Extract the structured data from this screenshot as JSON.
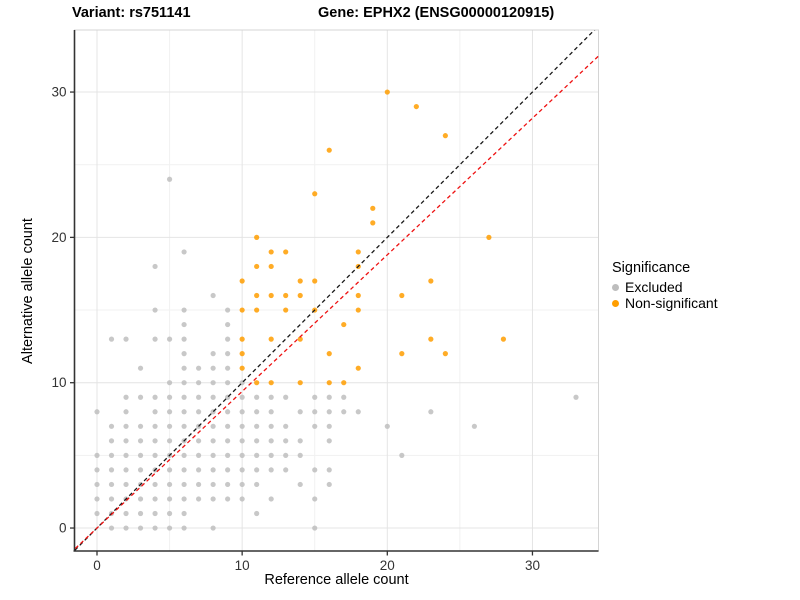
{
  "title": {
    "left": "Variant: rs751141",
    "right": "Gene: EPHX2 (ENSG00000120915)"
  },
  "axes": {
    "x": {
      "label": "Reference allele count"
    },
    "y": {
      "label": "Alternative allele count"
    }
  },
  "legend": {
    "title": "Significance",
    "items": [
      {
        "label": "Excluded",
        "color": "#BDBDBD"
      },
      {
        "label": "Non-significant",
        "color": "#FF9E00"
      }
    ]
  },
  "chart_data": {
    "type": "scatter",
    "title": "Variant: rs751141   Gene: EPHX2 (ENSG00000120915)",
    "xlabel": "Reference allele count",
    "ylabel": "Alternative allele count",
    "xlim": [
      -1.55,
      34.55
    ],
    "ylim": [
      -1.58,
      34.27
    ],
    "x_ticks": [
      0,
      10,
      20,
      30
    ],
    "y_ticks": [
      0,
      10,
      20,
      30
    ],
    "x_minor": [
      5,
      15,
      25
    ],
    "y_minor": [
      5,
      15,
      25
    ],
    "grid": true,
    "legend_position": "right",
    "point_radius": 2.6,
    "colors": {
      "panel_border": "#D4D4D4",
      "axis_line": "#333333",
      "major_grid": "#E4E4E4",
      "minor_grid": "#F1F1F1",
      "tick_text": "#333333"
    },
    "series": [
      {
        "name": "Excluded",
        "color": "#BEBEBE",
        "points": [
          [
            1,
            0
          ],
          [
            2,
            0
          ],
          [
            3,
            0
          ],
          [
            4,
            0
          ],
          [
            5,
            0
          ],
          [
            6,
            0
          ],
          [
            8,
            0
          ],
          [
            15,
            0
          ],
          [
            0,
            1
          ],
          [
            1,
            1
          ],
          [
            2,
            1
          ],
          [
            3,
            1
          ],
          [
            4,
            1
          ],
          [
            5,
            1
          ],
          [
            6,
            1
          ],
          [
            11,
            1
          ],
          [
            0,
            2
          ],
          [
            1,
            2
          ],
          [
            2,
            2
          ],
          [
            3,
            2
          ],
          [
            4,
            2
          ],
          [
            5,
            2
          ],
          [
            6,
            2
          ],
          [
            7,
            2
          ],
          [
            8,
            2
          ],
          [
            9,
            2
          ],
          [
            10,
            2
          ],
          [
            12,
            2
          ],
          [
            15,
            2
          ],
          [
            0,
            3
          ],
          [
            1,
            3
          ],
          [
            2,
            3
          ],
          [
            3,
            3
          ],
          [
            4,
            3
          ],
          [
            5,
            3
          ],
          [
            6,
            3
          ],
          [
            7,
            3
          ],
          [
            8,
            3
          ],
          [
            9,
            3
          ],
          [
            10,
            3
          ],
          [
            11,
            3
          ],
          [
            14,
            3
          ],
          [
            16,
            3
          ],
          [
            0,
            4
          ],
          [
            1,
            4
          ],
          [
            2,
            4
          ],
          [
            3,
            4
          ],
          [
            4,
            4
          ],
          [
            5,
            4
          ],
          [
            6,
            4
          ],
          [
            7,
            4
          ],
          [
            8,
            4
          ],
          [
            9,
            4
          ],
          [
            10,
            4
          ],
          [
            11,
            4
          ],
          [
            12,
            4
          ],
          [
            13,
            4
          ],
          [
            15,
            4
          ],
          [
            16,
            4
          ],
          [
            0,
            5
          ],
          [
            1,
            5
          ],
          [
            2,
            5
          ],
          [
            3,
            5
          ],
          [
            4,
            5
          ],
          [
            5,
            5
          ],
          [
            6,
            5
          ],
          [
            7,
            5
          ],
          [
            8,
            5
          ],
          [
            9,
            5
          ],
          [
            10,
            5
          ],
          [
            11,
            5
          ],
          [
            12,
            5
          ],
          [
            13,
            5
          ],
          [
            14,
            5
          ],
          [
            21,
            5
          ],
          [
            1,
            6
          ],
          [
            2,
            6
          ],
          [
            3,
            6
          ],
          [
            4,
            6
          ],
          [
            5,
            6
          ],
          [
            6,
            6
          ],
          [
            7,
            6
          ],
          [
            8,
            6
          ],
          [
            9,
            6
          ],
          [
            10,
            6
          ],
          [
            11,
            6
          ],
          [
            12,
            6
          ],
          [
            13,
            6
          ],
          [
            14,
            6
          ],
          [
            16,
            6
          ],
          [
            1,
            7
          ],
          [
            2,
            7
          ],
          [
            3,
            7
          ],
          [
            4,
            7
          ],
          [
            5,
            7
          ],
          [
            6,
            7
          ],
          [
            7,
            7
          ],
          [
            8,
            7
          ],
          [
            9,
            7
          ],
          [
            10,
            7
          ],
          [
            11,
            7
          ],
          [
            12,
            7
          ],
          [
            13,
            7
          ],
          [
            15,
            7
          ],
          [
            16,
            7
          ],
          [
            20,
            7
          ],
          [
            26,
            7
          ],
          [
            0,
            8
          ],
          [
            2,
            8
          ],
          [
            4,
            8
          ],
          [
            5,
            8
          ],
          [
            6,
            8
          ],
          [
            7,
            8
          ],
          [
            8,
            8
          ],
          [
            9,
            8
          ],
          [
            10,
            8
          ],
          [
            11,
            8
          ],
          [
            12,
            8
          ],
          [
            14,
            8
          ],
          [
            15,
            8
          ],
          [
            16,
            8
          ],
          [
            17,
            8
          ],
          [
            18,
            8
          ],
          [
            23,
            8
          ],
          [
            2,
            9
          ],
          [
            3,
            9
          ],
          [
            4,
            9
          ],
          [
            5,
            9
          ],
          [
            6,
            9
          ],
          [
            7,
            9
          ],
          [
            8,
            9
          ],
          [
            9,
            9
          ],
          [
            10,
            9
          ],
          [
            11,
            9
          ],
          [
            12,
            9
          ],
          [
            13,
            9
          ],
          [
            15,
            9
          ],
          [
            16,
            9
          ],
          [
            17,
            9
          ],
          [
            33,
            9
          ],
          [
            5,
            10
          ],
          [
            6,
            10
          ],
          [
            7,
            10
          ],
          [
            8,
            10
          ],
          [
            9,
            10
          ],
          [
            10,
            10
          ],
          [
            3,
            11
          ],
          [
            6,
            11
          ],
          [
            7,
            11
          ],
          [
            8,
            11
          ],
          [
            9,
            11
          ],
          [
            6,
            12
          ],
          [
            8,
            12
          ],
          [
            9,
            12
          ],
          [
            1,
            13
          ],
          [
            2,
            13
          ],
          [
            4,
            13
          ],
          [
            5,
            13
          ],
          [
            6,
            13
          ],
          [
            9,
            13
          ],
          [
            6,
            14
          ],
          [
            9,
            14
          ],
          [
            4,
            15
          ],
          [
            6,
            15
          ],
          [
            9,
            15
          ],
          [
            8,
            16
          ],
          [
            4,
            18
          ],
          [
            6,
            19
          ],
          [
            5,
            24
          ]
        ]
      },
      {
        "name": "Non-significant",
        "color": "#FF9E00",
        "points": [
          [
            11,
            10
          ],
          [
            12,
            10
          ],
          [
            14,
            10
          ],
          [
            16,
            10
          ],
          [
            17,
            10
          ],
          [
            10,
            11
          ],
          [
            18,
            11
          ],
          [
            10,
            12
          ],
          [
            16,
            12
          ],
          [
            21,
            12
          ],
          [
            24,
            12
          ],
          [
            10,
            13
          ],
          [
            12,
            13
          ],
          [
            14,
            13
          ],
          [
            23,
            13
          ],
          [
            28,
            13
          ],
          [
            17,
            14
          ],
          [
            10,
            15
          ],
          [
            11,
            15
          ],
          [
            13,
            15
          ],
          [
            15,
            15
          ],
          [
            18,
            15
          ],
          [
            11,
            16
          ],
          [
            12,
            16
          ],
          [
            13,
            16
          ],
          [
            14,
            16
          ],
          [
            18,
            16
          ],
          [
            21,
            16
          ],
          [
            10,
            17
          ],
          [
            14,
            17
          ],
          [
            15,
            17
          ],
          [
            23,
            17
          ],
          [
            11,
            18
          ],
          [
            12,
            18
          ],
          [
            18,
            18
          ],
          [
            12,
            19
          ],
          [
            13,
            19
          ],
          [
            18,
            19
          ],
          [
            11,
            20
          ],
          [
            27,
            20
          ],
          [
            19,
            21
          ],
          [
            19,
            22
          ],
          [
            15,
            23
          ],
          [
            16,
            26
          ],
          [
            24,
            27
          ],
          [
            22,
            29
          ],
          [
            20,
            30
          ]
        ]
      }
    ],
    "lines": [
      {
        "name": "identity-line",
        "slope": 1.0,
        "intercept": 0,
        "color": "#1A1A1A",
        "dashed": true
      },
      {
        "name": "expected-ratio-line",
        "slope": 0.94,
        "intercept": 0,
        "color": "#EE1111",
        "dashed": true
      }
    ]
  }
}
